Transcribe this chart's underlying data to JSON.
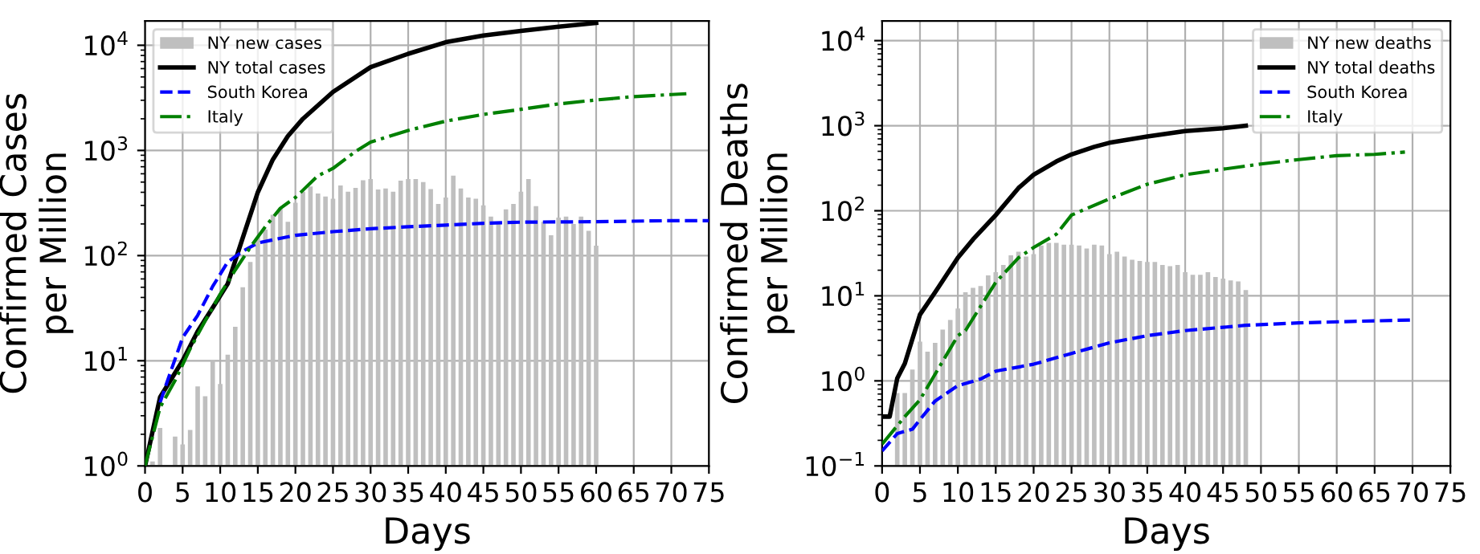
{
  "chart_data": [
    {
      "type": "bar",
      "xlabel": "Days",
      "ylabel": "Confirmed Cases\nper Million",
      "log": "y",
      "grid": true,
      "legend": "top left",
      "xlim": [
        0,
        75
      ],
      "xticks": [
        0,
        5,
        10,
        15,
        20,
        25,
        30,
        35,
        40,
        45,
        50,
        55,
        60,
        65,
        70,
        75
      ],
      "ylim": [
        1,
        17000
      ],
      "yticks": [
        {
          "value": 1,
          "label": "10$^{0}$"
        },
        {
          "value": 10,
          "label": "10$^{1}$"
        },
        {
          "value": 100,
          "label": "10$^{2}$"
        },
        {
          "value": 1000,
          "label": "10$^{3}$"
        },
        {
          "value": 10000,
          "label": "10$^{4}$"
        }
      ],
      "series": [
        {
          "name": "NY new cases",
          "color": "#bfbfbf",
          "x": [
            1,
            2,
            4,
            5,
            6,
            7,
            8,
            9,
            10,
            11,
            12,
            13,
            14,
            15,
            16,
            17,
            18,
            19,
            20,
            21,
            22,
            23,
            24,
            25,
            26,
            27,
            28,
            29,
            30,
            31,
            32,
            33,
            34,
            35,
            36,
            37,
            38,
            39,
            40,
            41,
            42,
            43,
            44,
            45,
            46,
            47,
            48,
            49,
            50,
            51,
            52,
            53,
            54,
            55,
            56,
            57,
            58,
            59,
            60
          ],
          "values": [
            1.1,
            2.3,
            1.9,
            1.6,
            2.2,
            5.7,
            4.6,
            10,
            6,
            11.4,
            21,
            50,
            87,
            151,
            177,
            245,
            282,
            210,
            318,
            405,
            455,
            390,
            365,
            348,
            465,
            405,
            440,
            520,
            535,
            425,
            435,
            405,
            515,
            535,
            535,
            500,
            430,
            310,
            357,
            575,
            435,
            357,
            348,
            300,
            235,
            210,
            275,
            310,
            405,
            535,
            295,
            210,
            156,
            230,
            235,
            200,
            235,
            172,
            124
          ]
        },
        {
          "name": "NY total cases",
          "type": "line",
          "color": "#000000",
          "line_style": "solid",
          "x": [
            0,
            2,
            5,
            7,
            9,
            11,
            13,
            15,
            17,
            19,
            21,
            25,
            30,
            35,
            40,
            45,
            50,
            55,
            60
          ],
          "values": [
            1,
            4.5,
            10,
            19,
            32,
            54,
            148,
            400,
            820,
            1370,
            2000,
            3600,
            6200,
            8300,
            10700,
            12400,
            13700,
            15000,
            16300
          ]
        },
        {
          "name": "South Korea",
          "type": "line",
          "color": "#0000ff",
          "line_style": "dashed",
          "x": [
            2,
            3,
            5,
            7,
            9,
            11,
            13,
            15,
            20,
            25,
            30,
            35,
            40,
            45,
            50,
            60,
            70,
            75
          ],
          "values": [
            4,
            6.5,
            16.6,
            27,
            51,
            87,
            110,
            132,
            156,
            169,
            180,
            188,
            195,
            203,
            208,
            210,
            215,
            215
          ]
        },
        {
          "name": "Italy",
          "type": "line",
          "color": "#008000",
          "line_style": "dashdot",
          "x": [
            0,
            2,
            4,
            6,
            8,
            10,
            12,
            14,
            16,
            18,
            20,
            23,
            25,
            28,
            30,
            35,
            40,
            45,
            50,
            55,
            60,
            65,
            70,
            72
          ],
          "values": [
            1,
            3.6,
            6.5,
            13,
            24,
            43,
            73,
            120,
            188,
            282,
            357,
            575,
            675,
            980,
            1200,
            1550,
            1900,
            2200,
            2460,
            2770,
            3020,
            3250,
            3400,
            3460
          ]
        }
      ]
    },
    {
      "type": "bar",
      "xlabel": "Days",
      "ylabel": "Confirmed Deaths\nper Million",
      "log": "y",
      "grid": true,
      "legend": "top right",
      "xlim": [
        0,
        75
      ],
      "xticks": [
        0,
        5,
        10,
        15,
        20,
        25,
        30,
        35,
        40,
        45,
        50,
        55,
        60,
        65,
        70,
        75
      ],
      "ylim": [
        0.1,
        17000
      ],
      "yticks": [
        {
          "value": 0.1,
          "label": "10$^{−1}$"
        },
        {
          "value": 1,
          "label": "10$^{0}$"
        },
        {
          "value": 10,
          "label": "10$^{1}$"
        },
        {
          "value": 100,
          "label": "10$^{2}$"
        },
        {
          "value": 1000,
          "label": "10$^{3}$"
        },
        {
          "value": 10000,
          "label": "10$^{4}$"
        }
      ],
      "series": [
        {
          "name": "NY new deaths",
          "color": "#bfbfbf",
          "x": [
            2,
            3,
            4,
            5,
            6,
            7,
            8,
            9,
            10,
            11,
            12,
            13,
            14,
            15,
            16,
            17,
            18,
            19,
            20,
            21,
            22,
            23,
            24,
            25,
            26,
            27,
            28,
            29,
            30,
            31,
            32,
            33,
            34,
            35,
            36,
            37,
            38,
            39,
            40,
            41,
            42,
            43,
            44,
            45,
            46,
            47,
            48
          ],
          "values": [
            0.72,
            0.72,
            1.36,
            2.9,
            2.2,
            2.8,
            4.0,
            5.2,
            7.1,
            11,
            12.4,
            13,
            17.4,
            19,
            23,
            30,
            33,
            29,
            31,
            39,
            42,
            42,
            40,
            40,
            39,
            36,
            40,
            39,
            31,
            33,
            29,
            26.5,
            25.7,
            25,
            25,
            23,
            22.3,
            23,
            19,
            17.7,
            17.7,
            19,
            16.6,
            15.9,
            15.2,
            14.8,
            11.7
          ]
        },
        {
          "name": "NY total deaths",
          "type": "line",
          "color": "#000000",
          "line_style": "solid",
          "x": [
            0,
            1,
            2,
            3,
            5,
            7,
            10,
            12,
            15,
            18,
            20,
            23,
            25,
            28,
            30,
            35,
            40,
            45,
            48
          ],
          "values": [
            0.38,
            0.38,
            1.07,
            1.6,
            6,
            11,
            28,
            46,
            89,
            185,
            265,
            380,
            460,
            565,
            630,
            745,
            865,
            935,
            1000
          ]
        },
        {
          "name": "South Korea",
          "type": "line",
          "color": "#0000ff",
          "line_style": "dashed",
          "x": [
            0,
            2,
            4,
            5,
            7,
            10,
            13,
            15,
            20,
            25,
            30,
            35,
            40,
            48,
            55,
            62,
            70
          ],
          "values": [
            0.15,
            0.24,
            0.27,
            0.35,
            0.58,
            0.88,
            1.05,
            1.3,
            1.57,
            2.1,
            2.8,
            3.4,
            3.9,
            4.5,
            4.8,
            5.0,
            5.2
          ]
        },
        {
          "name": "Italy",
          "type": "line",
          "color": "#008000",
          "line_style": "dashdot",
          "x": [
            0,
            3,
            5,
            7,
            10,
            11,
            13,
            15,
            18,
            20,
            23,
            25,
            30,
            35,
            40,
            45,
            50,
            55,
            60,
            65,
            69
          ],
          "values": [
            0.18,
            0.38,
            0.6,
            1.2,
            3.4,
            3.9,
            7.5,
            14.4,
            28,
            37,
            53,
            89,
            138,
            205,
            265,
            308,
            355,
            400,
            445,
            460,
            490
          ]
        }
      ]
    }
  ]
}
